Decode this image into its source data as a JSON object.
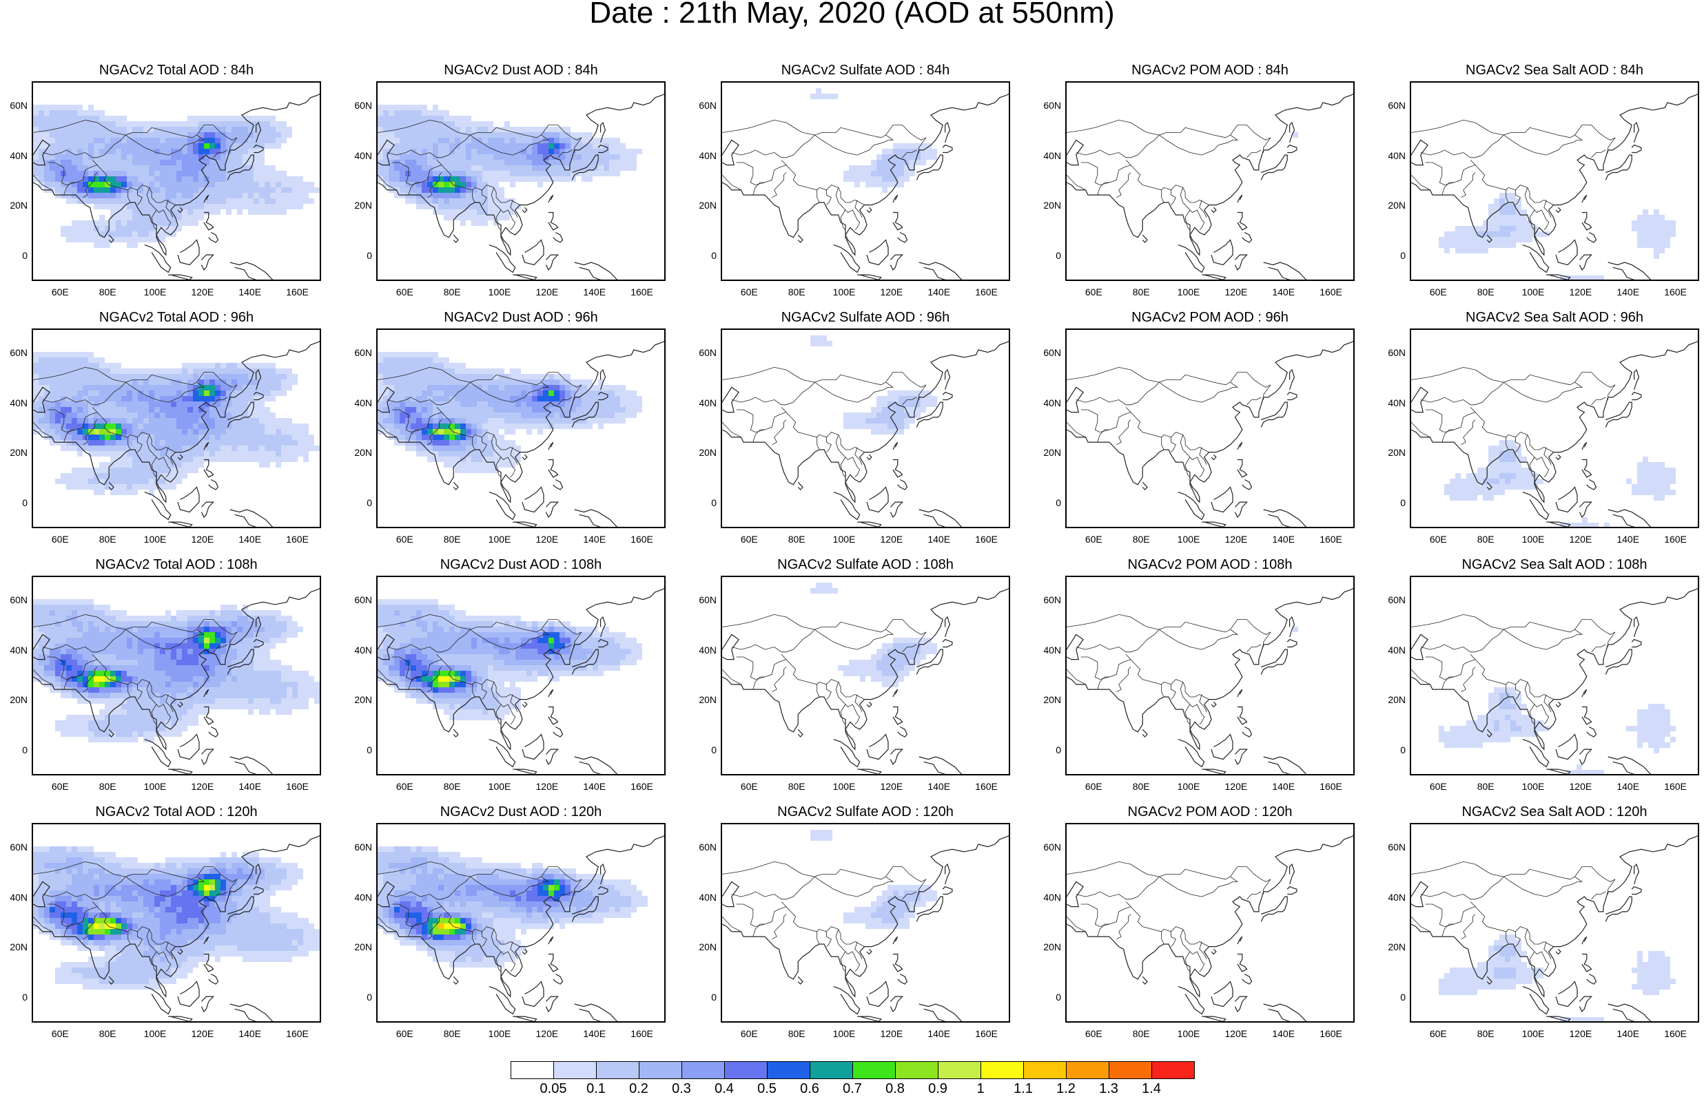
{
  "title": "Date : 21th May, 2020 (AOD at 550nm)",
  "rows": [
    {
      "hour": "84h",
      "panels": [
        "NGACv2 Total AOD : 84h",
        "NGACv2 Dust AOD : 84h",
        "NGACv2 Sulfate AOD : 84h",
        "NGACv2 POM AOD : 84h",
        "NGACv2 Sea Salt AOD : 84h"
      ]
    },
    {
      "hour": "96h",
      "panels": [
        "NGACv2 Total AOD : 96h",
        "NGACv2 Dust AOD : 96h",
        "NGACv2 Sulfate AOD : 96h",
        "NGACv2 POM AOD : 96h",
        "NGACv2 Sea Salt AOD : 96h"
      ]
    },
    {
      "hour": "108h",
      "panels": [
        "NGACv2 Total AOD : 108h",
        "NGACv2 Dust AOD : 108h",
        "NGACv2 Sulfate AOD : 108h",
        "NGACv2 POM AOD : 108h",
        "NGACv2 Sea Salt AOD : 108h"
      ]
    },
    {
      "hour": "120h",
      "panels": [
        "NGACv2 Total AOD : 120h",
        "NGACv2 Dust AOD : 120h",
        "NGACv2 Sulfate AOD : 120h",
        "NGACv2 POM AOD : 120h",
        "NGACv2 Sea Salt  AOD : 120h"
      ]
    }
  ],
  "lat_ticks": [
    "60N",
    "40N",
    "20N",
    "0"
  ],
  "lon_ticks": [
    "60E",
    "80E",
    "100E",
    "120E",
    "140E",
    "160E"
  ],
  "colorbar": {
    "labels": [
      "0.05",
      "0.1",
      "0.2",
      "0.3",
      "0.4",
      "0.5",
      "0.6",
      "0.7",
      "0.8",
      "0.9",
      "1",
      "1.1",
      "1.2",
      "1.3",
      "1.4"
    ],
    "colors": [
      "#ffffff",
      "#d2dcfa",
      "#b9c9f7",
      "#a3b6f6",
      "#8a9ef5",
      "#6675ef",
      "#1f62e8",
      "#12a09a",
      "#3ee51a",
      "#8ce520",
      "#c5ef47",
      "#fdfa12",
      "#fdc708",
      "#fc9b08",
      "#f96d06",
      "#f8231a"
    ]
  }
}
